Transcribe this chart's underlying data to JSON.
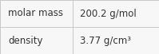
{
  "rows": [
    [
      "molar mass",
      "200.2 g/mol"
    ],
    [
      "density",
      "3.77 g/cm³"
    ]
  ],
  "col_split": 0.455,
  "background_color": "#f7f7f7",
  "border_color": "#c8c8c8",
  "text_color": "#333333",
  "font_size": 8.5,
  "fig_width": 1.99,
  "fig_height": 0.68,
  "dpi": 100
}
